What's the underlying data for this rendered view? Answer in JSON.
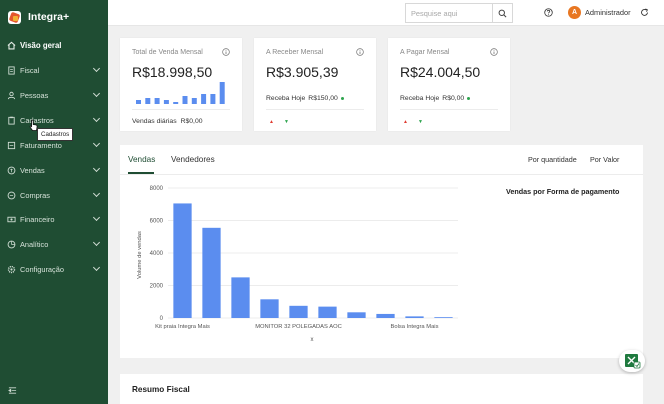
{
  "app": {
    "name": "Integra+"
  },
  "sidebar": {
    "items": [
      {
        "label": "Visão geral",
        "icon": "home-icon"
      },
      {
        "label": "Fiscal",
        "icon": "document-icon"
      },
      {
        "label": "Pessoas",
        "icon": "people-icon"
      },
      {
        "label": "Cadastros",
        "icon": "clipboard-icon"
      },
      {
        "label": "Faturamento",
        "icon": "invoice-icon"
      },
      {
        "label": "Vendas",
        "icon": "cart-icon"
      },
      {
        "label": "Compras",
        "icon": "bag-icon"
      },
      {
        "label": "Financeiro",
        "icon": "money-icon"
      },
      {
        "label": "Analítico",
        "icon": "chart-icon"
      },
      {
        "label": "Configuração",
        "icon": "gear-icon"
      }
    ],
    "tooltip": "Cadastros"
  },
  "header": {
    "search_placeholder": "Pesquise aqui",
    "user_initial": "A",
    "user_name": "Administrador"
  },
  "cards": {
    "sales": {
      "title": "Total de Venda Mensal",
      "value": "R$18.998,50",
      "foot_label": "Vendas diárias",
      "foot_value": "R$0,00",
      "sparkline": [
        2,
        3,
        3,
        2,
        1,
        4,
        3,
        5,
        5,
        11
      ]
    },
    "receivable": {
      "title": "A Receber Mensal",
      "value": "R$3.905,39",
      "today_label": "Receba Hoje",
      "today_value": "R$150,00"
    },
    "payable": {
      "title": "A Pagar Mensal",
      "value": "R$24.004,50",
      "today_label": "Receba Hoje",
      "today_value": "R$0,00"
    }
  },
  "sales_panel": {
    "tabs": [
      "Vendas",
      "Vendedores"
    ],
    "options": [
      "Por quantidade",
      "Por Valor"
    ],
    "pie_title": "Vendas por Forma de pagamento"
  },
  "chart_data": {
    "type": "bar",
    "ylabel": "Volume de vendas",
    "xlabel": "x",
    "ylim": [
      0,
      8000
    ],
    "yticks": [
      0,
      2000,
      4000,
      6000,
      8000
    ],
    "x_tick_labels": [
      "Kit praia Integra Mais",
      "MONITOR 32 POLEGADAS AOC",
      "Bolsa Integra Mais"
    ],
    "values": [
      7050,
      5550,
      2500,
      1150,
      750,
      700,
      350,
      250,
      100,
      50
    ],
    "bar_color": "#5b8def",
    "grid": true
  },
  "bottom_panel": {
    "title": "Resumo Fiscal"
  },
  "colors": {
    "sidebar": "#1f4d33",
    "accent": "#e87722",
    "bar": "#5b8def"
  }
}
